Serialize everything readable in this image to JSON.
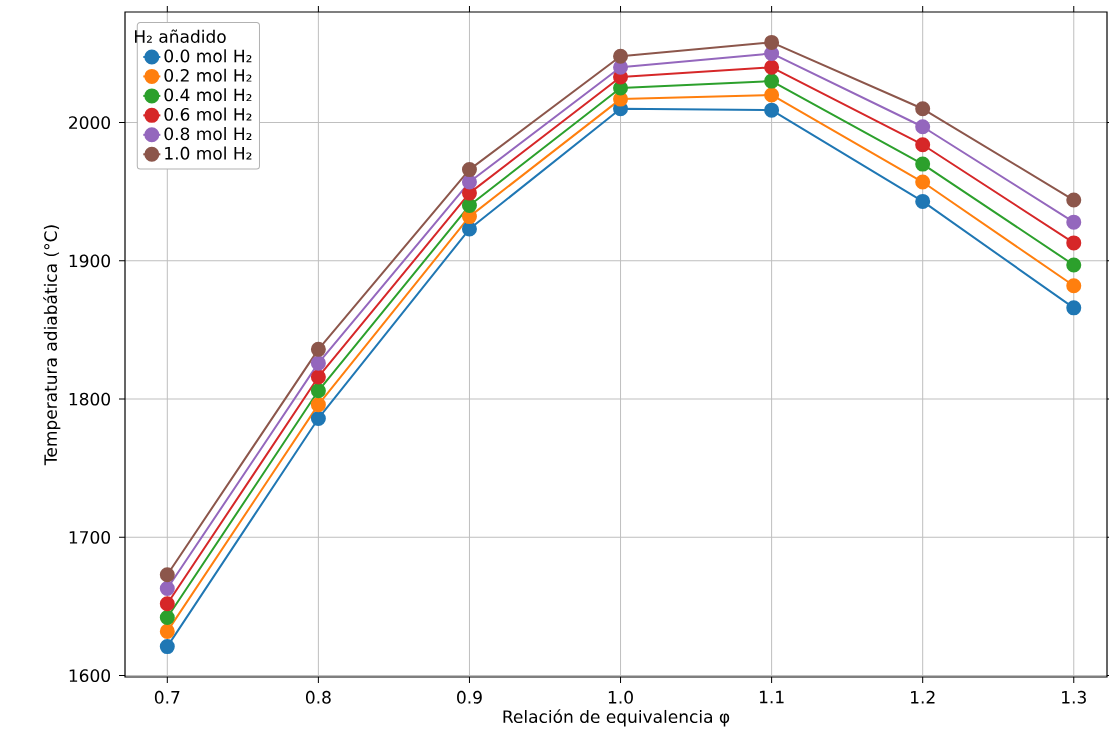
{
  "chart_data": {
    "type": "line",
    "xlabel": "Relación de equivalencia φ",
    "ylabel": "Temperatura adiabática (°C)",
    "legend_title": "H₂ añadido",
    "x": [
      0.7,
      0.8,
      0.9,
      1.0,
      1.1,
      1.2,
      1.3
    ],
    "series": [
      {
        "name": "0.0 mol H₂",
        "color": "#1f77b4",
        "values": [
          1621,
          1786,
          1923,
          2010,
          2009,
          1943,
          1866
        ]
      },
      {
        "name": "0.2 mol H₂",
        "color": "#ff7f0e",
        "values": [
          1632,
          1796,
          1932,
          2017,
          2020,
          1957,
          1882
        ]
      },
      {
        "name": "0.4 mol H₂",
        "color": "#2ca02c",
        "values": [
          1642,
          1806,
          1940,
          2025,
          2030,
          1970,
          1897
        ]
      },
      {
        "name": "0.6 mol H₂",
        "color": "#d62728",
        "values": [
          1652,
          1816,
          1949,
          2033,
          2040,
          1984,
          1913
        ]
      },
      {
        "name": "0.8 mol H₂",
        "color": "#9467bd",
        "values": [
          1663,
          1826,
          1957,
          2040,
          2050,
          1997,
          1928
        ]
      },
      {
        "name": "1.0 mol H₂",
        "color": "#8c564b",
        "values": [
          1673,
          1836,
          1966,
          2048,
          2058,
          2010,
          1944
        ]
      }
    ],
    "xlim": [
      0.672,
      1.322
    ],
    "ylim": [
      1599,
      2080
    ],
    "xticks": [
      {
        "value": 0.7,
        "label": "0.7"
      },
      {
        "value": 0.8,
        "label": "0.8"
      },
      {
        "value": 0.9,
        "label": "0.9"
      },
      {
        "value": 1.0,
        "label": "1.0"
      },
      {
        "value": 1.1,
        "label": "1.1"
      },
      {
        "value": 1.2,
        "label": "1.2"
      },
      {
        "value": 1.3,
        "label": "1.3"
      }
    ],
    "yticks": [
      1600,
      1700,
      1800,
      1900,
      2000
    ],
    "grid": true,
    "legend": "top left",
    "marker": "circle",
    "line_style": "solid"
  }
}
